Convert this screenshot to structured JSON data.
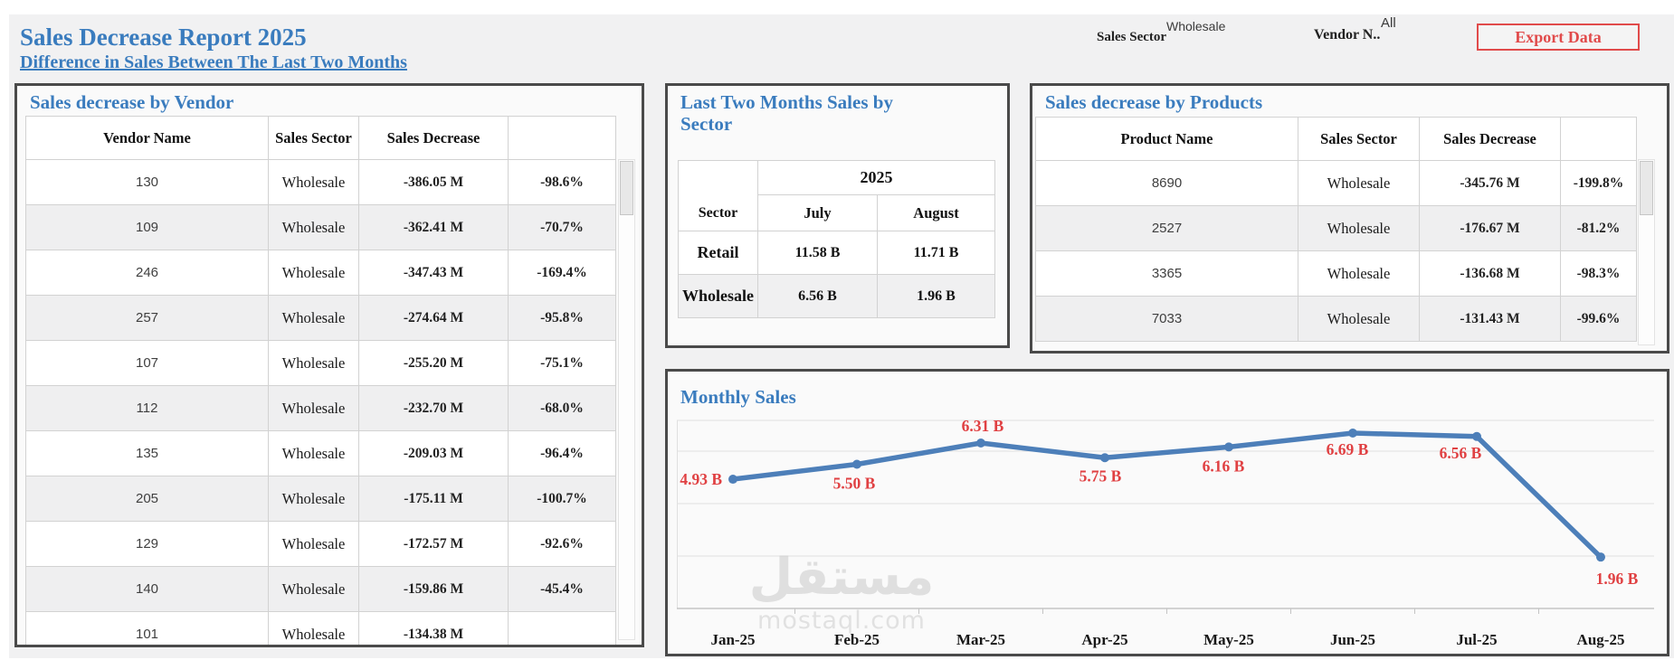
{
  "page": {
    "title": "Sales Decrease Report 2025",
    "subtitle": "Difference in Sales Between The Last Two Months"
  },
  "filters": {
    "sales_sector": {
      "label": "Sales Sector",
      "value": "Wholesale"
    },
    "vendor": {
      "label": "Vendor N..",
      "value": "All"
    },
    "export_label": "Export Data"
  },
  "vendor_panel": {
    "title": "Sales decrease by Vendor",
    "columns": [
      "Vendor Name",
      "Sales Sector",
      "Sales Decrease",
      ""
    ],
    "rows": [
      [
        "130",
        "Wholesale",
        "-386.05 M",
        "-98.6%"
      ],
      [
        "109",
        "Wholesale",
        "-362.41 M",
        "-70.7%"
      ],
      [
        "246",
        "Wholesale",
        "-347.43 M",
        "-169.4%"
      ],
      [
        "257",
        "Wholesale",
        "-274.64 M",
        "-95.8%"
      ],
      [
        "107",
        "Wholesale",
        "-255.20 M",
        "-75.1%"
      ],
      [
        "112",
        "Wholesale",
        "-232.70 M",
        "-68.0%"
      ],
      [
        "135",
        "Wholesale",
        "-209.03 M",
        "-96.4%"
      ],
      [
        "205",
        "Wholesale",
        "-175.11 M",
        "-100.7%"
      ],
      [
        "129",
        "Wholesale",
        "-172.57 M",
        "-92.6%"
      ],
      [
        "140",
        "Wholesale",
        "-159.86 M",
        "-45.4%"
      ],
      [
        "101",
        "Wholesale",
        "-134.38 M",
        ""
      ]
    ]
  },
  "sector_panel": {
    "title_line1": "Last Two Months Sales by",
    "title_line2": "Sector",
    "row_header": "Sector",
    "year_header": "2025",
    "month_columns": [
      "July",
      "August"
    ],
    "rows": [
      {
        "sector": "Retail",
        "july": "11.58 B",
        "august": "11.71 B"
      },
      {
        "sector": "Wholesale",
        "july": "6.56 B",
        "august": "1.96 B"
      }
    ]
  },
  "products_panel": {
    "title": "Sales decrease by Products",
    "columns": [
      "Product Name",
      "Sales Sector",
      "Sales Decrease",
      ""
    ],
    "rows": [
      [
        "8690",
        "Wholesale",
        "-345.76 M",
        "-199.8%"
      ],
      [
        "2527",
        "Wholesale",
        "-176.67 M",
        "-81.2%"
      ],
      [
        "3365",
        "Wholesale",
        "-136.68 M",
        "-98.3%"
      ],
      [
        "7033",
        "Wholesale",
        "-131.43 M",
        "-99.6%"
      ]
    ]
  },
  "chart_panel": {
    "title": "Monthly Sales"
  },
  "chart_data": {
    "type": "line",
    "title": "Monthly Sales",
    "categories": [
      "Jan-25",
      "Feb-25",
      "Mar-25",
      "Apr-25",
      "May-25",
      "Jun-25",
      "Jul-25",
      "Aug-25"
    ],
    "values": [
      4.93,
      5.5,
      6.31,
      5.75,
      6.16,
      6.69,
      6.56,
      1.96
    ],
    "labels": [
      "4.93 B",
      "5.50 B",
      "6.31 B",
      "5.75 B",
      "6.16 B",
      "6.69 B",
      "6.56 B",
      "1.96 B"
    ],
    "unit": "B",
    "xlabel": "",
    "ylabel": "",
    "ylim": [
      0,
      7.3
    ],
    "grid": true,
    "legend": "none",
    "line_color": "#4d7fb9",
    "label_color": "#e04042"
  },
  "watermark": {
    "arabic": "مستقل",
    "latin": "mostaql.com"
  },
  "colors": {
    "accent": "#3a7cbe",
    "export-red": "#e14b4b",
    "label-red": "#e04042",
    "line-blue": "#4d7fb9",
    "panel-border": "#4a4a4a"
  }
}
